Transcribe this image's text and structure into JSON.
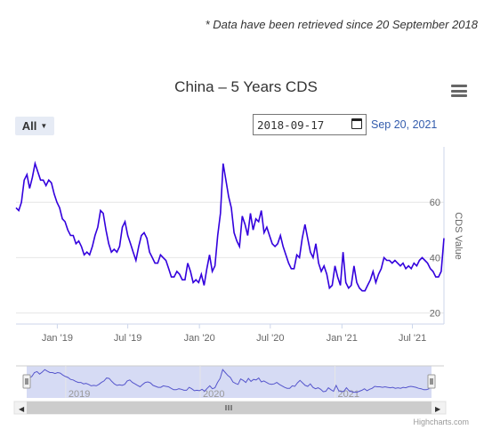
{
  "note": "* Data have been retrieved since 20 September 2018",
  "toolbar": {
    "range_selected": "All",
    "date_from": "2018-09-17",
    "date_to": "Sep 20, 2021",
    "menu_icon": "hamburger-menu-icon",
    "calendar_icon": "calendar-icon"
  },
  "credit": "Highcharts.com",
  "colors": {
    "line": "#3300dd",
    "navigator_fill": "#c8cff0",
    "navigator_line": "#5555cc"
  },
  "chart_data": {
    "type": "line",
    "title": "China – 5 Years CDS",
    "ylabel": "CDS Value",
    "xlabel": "",
    "x_ticks": [
      "Jan '19",
      "Jul '19",
      "Jan '20",
      "Jul '20",
      "Jan '21",
      "Jul '21"
    ],
    "y_ticks": [
      20,
      40,
      60
    ],
    "ylim": [
      16,
      80
    ],
    "x_range": [
      "2018-09-17",
      "2021-09-20"
    ],
    "grid": true,
    "navigator_labels": [
      "2019",
      "2020",
      "2021"
    ],
    "series": [
      {
        "x": [
          "2018-09-17",
          "2018-09-24",
          "2018-10-01",
          "2018-10-08",
          "2018-10-15",
          "2018-10-22",
          "2018-10-29",
          "2018-11-05",
          "2018-11-12",
          "2018-11-19",
          "2018-11-26",
          "2018-12-03",
          "2018-12-10",
          "2018-12-17",
          "2018-12-24",
          "2018-12-31",
          "2019-01-07",
          "2019-01-14",
          "2019-01-21",
          "2019-01-28",
          "2019-02-04",
          "2019-02-11",
          "2019-02-18",
          "2019-02-25",
          "2019-03-04",
          "2019-03-11",
          "2019-03-18",
          "2019-03-25",
          "2019-04-01",
          "2019-04-08",
          "2019-04-15",
          "2019-04-22",
          "2019-04-29",
          "2019-05-06",
          "2019-05-13",
          "2019-05-20",
          "2019-05-27",
          "2019-06-03",
          "2019-06-10",
          "2019-06-17",
          "2019-06-24",
          "2019-07-01",
          "2019-07-08",
          "2019-07-15",
          "2019-07-22",
          "2019-07-29",
          "2019-08-05",
          "2019-08-12",
          "2019-08-19",
          "2019-08-26",
          "2019-09-02",
          "2019-09-09",
          "2019-09-16",
          "2019-09-23",
          "2019-09-30",
          "2019-10-07",
          "2019-10-14",
          "2019-10-21",
          "2019-10-28",
          "2019-11-04",
          "2019-11-11",
          "2019-11-18",
          "2019-11-25",
          "2019-12-02",
          "2019-12-09",
          "2019-12-16",
          "2019-12-23",
          "2019-12-30",
          "2020-01-06",
          "2020-01-13",
          "2020-01-20",
          "2020-01-27",
          "2020-02-03",
          "2020-02-10",
          "2020-02-17",
          "2020-02-24",
          "2020-03-02",
          "2020-03-09",
          "2020-03-16",
          "2020-03-23",
          "2020-03-30",
          "2020-04-06",
          "2020-04-13",
          "2020-04-20",
          "2020-04-27",
          "2020-05-04",
          "2020-05-11",
          "2020-05-18",
          "2020-05-25",
          "2020-06-01",
          "2020-06-08",
          "2020-06-15",
          "2020-06-22",
          "2020-06-29",
          "2020-07-06",
          "2020-07-13",
          "2020-07-20",
          "2020-07-27",
          "2020-08-03",
          "2020-08-10",
          "2020-08-17",
          "2020-08-24",
          "2020-08-31",
          "2020-09-07",
          "2020-09-14",
          "2020-09-21",
          "2020-09-28",
          "2020-10-05",
          "2020-10-12",
          "2020-10-19",
          "2020-10-26",
          "2020-11-02",
          "2020-11-09",
          "2020-11-16",
          "2020-11-23",
          "2020-11-30",
          "2020-12-07",
          "2020-12-14",
          "2020-12-21",
          "2020-12-28",
          "2021-01-04",
          "2021-01-11",
          "2021-01-18",
          "2021-01-25",
          "2021-02-01",
          "2021-02-08",
          "2021-02-15",
          "2021-02-22",
          "2021-03-01",
          "2021-03-08",
          "2021-03-15",
          "2021-03-22",
          "2021-03-29",
          "2021-04-05",
          "2021-04-12",
          "2021-04-19",
          "2021-04-26",
          "2021-05-03",
          "2021-05-10",
          "2021-05-17",
          "2021-05-24",
          "2021-05-31",
          "2021-06-07",
          "2021-06-14",
          "2021-06-21",
          "2021-06-28",
          "2021-07-05",
          "2021-07-12",
          "2021-07-19",
          "2021-07-26",
          "2021-08-02",
          "2021-08-09",
          "2021-08-16",
          "2021-08-23",
          "2021-08-30",
          "2021-09-06",
          "2021-09-13",
          "2021-09-20"
        ],
        "values": [
          58,
          57,
          60,
          68,
          70,
          65,
          69,
          74,
          71,
          68,
          68,
          66,
          68,
          67,
          63,
          60,
          58,
          54,
          53,
          50,
          48,
          48,
          45,
          46,
          44,
          41,
          42,
          41,
          44,
          48,
          51,
          57,
          56,
          50,
          45,
          42,
          43,
          42,
          44,
          51,
          53,
          48,
          45,
          42,
          39,
          44,
          48,
          49,
          47,
          42,
          40,
          38,
          38,
          41,
          40,
          39,
          36,
          33,
          33,
          35,
          34,
          32,
          32,
          38,
          35,
          31,
          32,
          31,
          34,
          30,
          36,
          41,
          35,
          37,
          48,
          56,
          74,
          68,
          62,
          58,
          49,
          46,
          44,
          55,
          52,
          48,
          56,
          50,
          54,
          53,
          57,
          49,
          51,
          48,
          45,
          44,
          45,
          48,
          44,
          41,
          38,
          36,
          36,
          41,
          40,
          47,
          52,
          47,
          42,
          40,
          45,
          38,
          35,
          37,
          34,
          29,
          30,
          37,
          33,
          30,
          42,
          31,
          29,
          30,
          37,
          31,
          29,
          28,
          28,
          30,
          32,
          35,
          31,
          34,
          36,
          40,
          39,
          39,
          38,
          39,
          38,
          37,
          38,
          36,
          37,
          36,
          38,
          37,
          39,
          40,
          39,
          38,
          36,
          35,
          33,
          33,
          35,
          47
        ]
      }
    ]
  }
}
